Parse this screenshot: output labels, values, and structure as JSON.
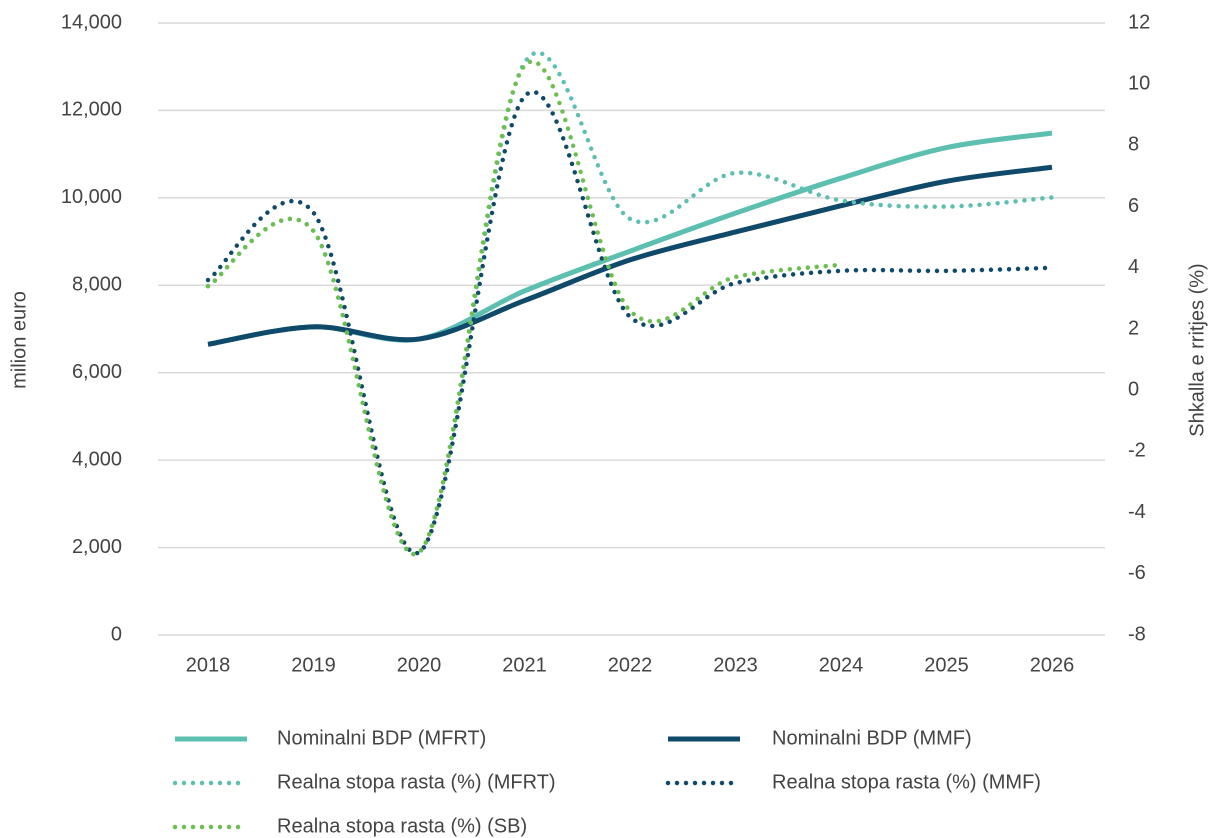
{
  "chart_data": {
    "type": "line",
    "categories": [
      "2018",
      "2019",
      "2020",
      "2021",
      "2022",
      "2023",
      "2024",
      "2025",
      "2026"
    ],
    "ylabel": "milion euro",
    "y2label": "Shkalla e rritjes (%)",
    "ylim": [
      0,
      14000
    ],
    "yticks": [
      {
        "value": 0,
        "label": "0"
      },
      {
        "value": 2000,
        "label": "2,000"
      },
      {
        "value": 4000,
        "label": "4,000"
      },
      {
        "value": 6000,
        "label": "6,000"
      },
      {
        "value": 8000,
        "label": "8,000"
      },
      {
        "value": 10000,
        "label": "10,000"
      },
      {
        "value": 12000,
        "label": "12,000"
      },
      {
        "value": 14000,
        "label": "14,000"
      }
    ],
    "y2lim": [
      -8,
      12
    ],
    "y2ticks": [
      -8,
      -6,
      -4,
      -2,
      0,
      2,
      4,
      6,
      8,
      10,
      12
    ],
    "grid": true,
    "legend": "bottom",
    "series": [
      {
        "name": "Nominalni BDP (MFRT)",
        "color": "#5cbfb0",
        "style": "solid",
        "values": [
          6650,
          7050,
          6770,
          7870,
          8780,
          9650,
          10450,
          11150,
          11480
        ]
      },
      {
        "name": "Nominalni BDP (MMF)",
        "color": "#0f4a6b",
        "style": "solid",
        "values": [
          6650,
          7050,
          6770,
          7650,
          8580,
          9220,
          9820,
          10380,
          10700
        ]
      },
      {
        "name": "Realna stopa rasta (%) (MFRT)",
        "color": "#5cbfb0",
        "style": "dotted",
        "axis": "y2",
        "values": [
          3.4,
          5.2,
          -5.3,
          10.7,
          5.6,
          7.1,
          6.2,
          6.0,
          6.3
        ]
      },
      {
        "name": "Realna stopa rasta (%) (MMF)",
        "color": "#0f4a6b",
        "style": "dotted",
        "axis": "y2",
        "values": [
          3.6,
          5.8,
          -5.3,
          9.6,
          2.4,
          3.5,
          3.9,
          3.9,
          4.0
        ]
      },
      {
        "name": "Realna stopa rasta (%) (SB)",
        "color": "#6cbf4f",
        "style": "dotted",
        "axis": "y2",
        "values": [
          3.4,
          5.2,
          -5.3,
          10.6,
          2.6,
          3.7,
          4.1,
          null,
          null
        ]
      }
    ]
  }
}
